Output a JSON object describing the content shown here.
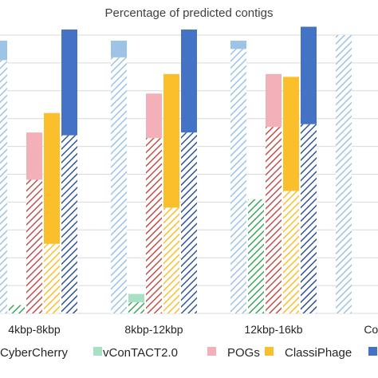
{
  "chart_data": {
    "type": "bar",
    "title": "Percentage of predicted contigs",
    "xlabel": "",
    "ylabel": "",
    "ylim": [
      0,
      100
    ],
    "grid": true,
    "legend_position": "bottom",
    "categories": [
      "4kbp-8kbp",
      "8kbp-12kbp",
      "12kbp-16kb",
      "Comp"
    ],
    "series": [
      {
        "name": "CyberCherry",
        "color": "#9dc3e6",
        "hatched_values": [
          91,
          92,
          95,
          100
        ],
        "solid_values": [
          7,
          6,
          3,
          0
        ]
      },
      {
        "name": "vContact2.0",
        "color": "#a8e0c4",
        "hatched_values": [
          3,
          4,
          41,
          null
        ],
        "solid_values": [
          0,
          3,
          0,
          null
        ]
      },
      {
        "name": "POGs",
        "color": "#f4b0b9",
        "hatched_values": [
          48,
          63,
          67,
          null
        ],
        "solid_values": [
          17,
          16,
          19,
          null
        ]
      },
      {
        "name": "ClassiPhage",
        "color": "#fbbf2c",
        "hatched_values": [
          25,
          38,
          44,
          null
        ],
        "solid_values": [
          47,
          48,
          41,
          null
        ]
      },
      {
        "name": "",
        "color": "#4472c4",
        "hatched_values": [
          64,
          65,
          68,
          null
        ],
        "solid_values": [
          38,
          37,
          35,
          null
        ]
      }
    ],
    "legend": [
      {
        "label": "CyberCherry",
        "color": "#9dc3e6"
      },
      {
        "label": "vConTACT2.0",
        "color": "#a8e0c4"
      },
      {
        "label": "POGs",
        "color": "#f4b0b9"
      },
      {
        "label": "ClassiPhage",
        "color": "#fbbf2c"
      },
      {
        "label": "",
        "color": "#4472c4"
      }
    ],
    "hatch_colors": [
      "#9dc3e6",
      "#3aa65a",
      "#c0504d",
      "#fbbf2c",
      "#2f5597"
    ]
  }
}
